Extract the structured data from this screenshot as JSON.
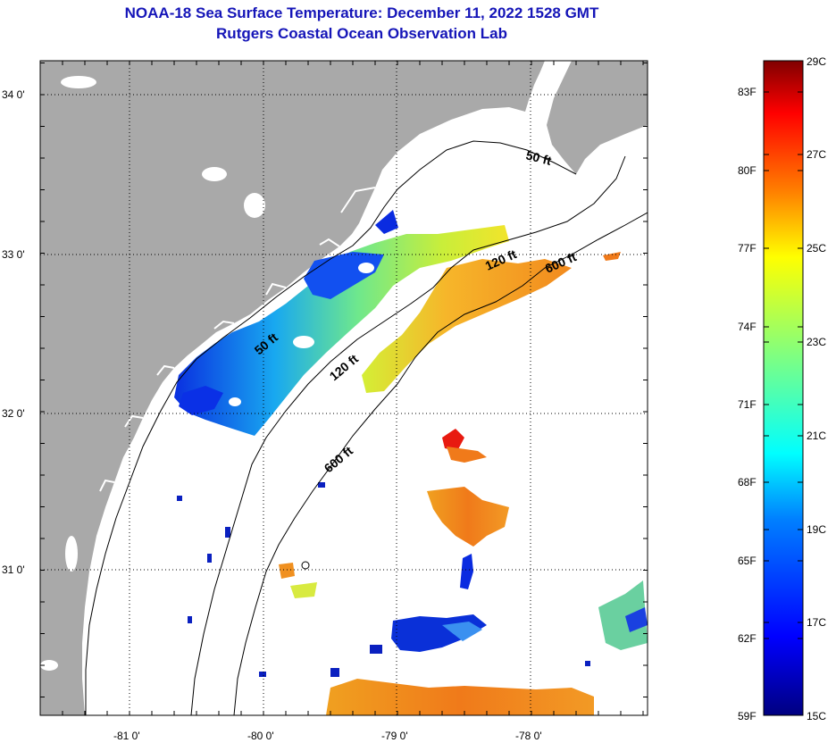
{
  "title": {
    "line1": "NOAA-18 Sea Surface Temperature:  December 11, 2022 1528 GMT",
    "line2": "Rutgers Coastal Ocean Observation Lab"
  },
  "axes": {
    "lat_labels": [
      "34 0'",
      "33 0'",
      "32 0'",
      "31 0'"
    ],
    "lon_labels": [
      "-81 0'",
      "-80 0'",
      "-79 0'",
      "-78 0'"
    ]
  },
  "contours": {
    "labels": [
      "50 ft",
      "50 ft",
      "120 ft",
      "120 ft",
      "600 ft",
      "600 ft"
    ]
  },
  "colorbar": {
    "fahrenheit": [
      "83F",
      "80F",
      "77F",
      "74F",
      "71F",
      "68F",
      "65F",
      "62F",
      "59F"
    ],
    "celsius": [
      "29C",
      "27C",
      "25C",
      "23C",
      "21C",
      "19C",
      "17C",
      "15C"
    ],
    "colors": [
      "#000080",
      "#0000ff",
      "#0080ff",
      "#00ffff",
      "#80ff80",
      "#ffff00",
      "#ff8000",
      "#ff0000",
      "#800000"
    ]
  },
  "colors": {
    "land": "#a9a9a9",
    "title": "#1515b8"
  }
}
